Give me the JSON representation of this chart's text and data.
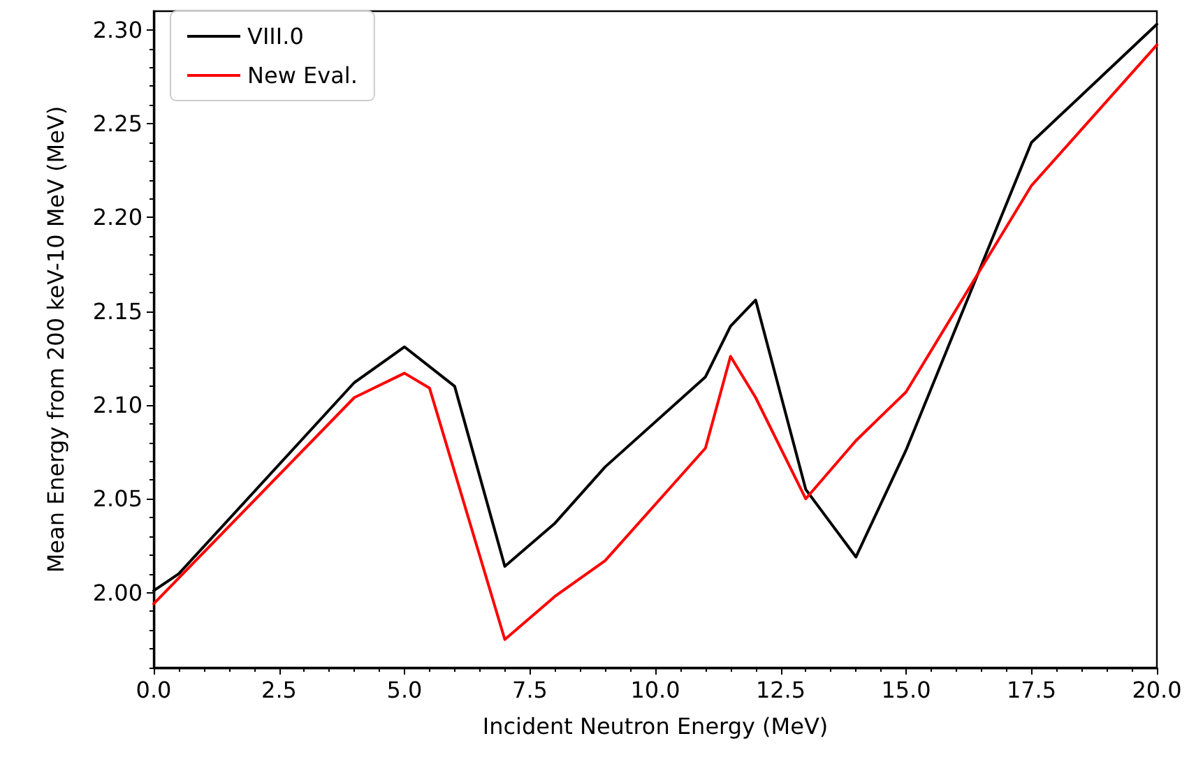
{
  "chart_data": {
    "type": "line",
    "xlabel": "Incident Neutron Energy (MeV)",
    "ylabel": "Mean Energy from 200 keV-10 MeV (MeV)",
    "xlim": [
      0,
      20
    ],
    "ylim": [
      1.96,
      2.31
    ],
    "xticks": [
      {
        "value": 0,
        "label": "0.0"
      },
      {
        "value": 0.5,
        "label": null
      },
      {
        "value": 1,
        "label": null
      },
      {
        "value": 1.5,
        "label": null
      },
      {
        "value": 2,
        "label": null
      },
      {
        "value": 2.5,
        "label": "2.5"
      },
      {
        "value": 3,
        "label": null
      },
      {
        "value": 3.5,
        "label": null
      },
      {
        "value": 4,
        "label": null
      },
      {
        "value": 4.5,
        "label": null
      },
      {
        "value": 5,
        "label": "5.0"
      },
      {
        "value": 5.5,
        "label": null
      },
      {
        "value": 6,
        "label": null
      },
      {
        "value": 6.5,
        "label": null
      },
      {
        "value": 7,
        "label": null
      },
      {
        "value": 7.5,
        "label": "7.5"
      },
      {
        "value": 8,
        "label": null
      },
      {
        "value": 8.5,
        "label": null
      },
      {
        "value": 9,
        "label": null
      },
      {
        "value": 9.5,
        "label": null
      },
      {
        "value": 10,
        "label": "10.0"
      },
      {
        "value": 10.5,
        "label": null
      },
      {
        "value": 11,
        "label": null
      },
      {
        "value": 11.5,
        "label": null
      },
      {
        "value": 12,
        "label": null
      },
      {
        "value": 12.5,
        "label": "12.5"
      },
      {
        "value": 13,
        "label": null
      },
      {
        "value": 13.5,
        "label": null
      },
      {
        "value": 14,
        "label": null
      },
      {
        "value": 14.5,
        "label": null
      },
      {
        "value": 15,
        "label": "15.0"
      },
      {
        "value": 15.5,
        "label": null
      },
      {
        "value": 16,
        "label": null
      },
      {
        "value": 16.5,
        "label": null
      },
      {
        "value": 17,
        "label": null
      },
      {
        "value": 17.5,
        "label": "17.5"
      },
      {
        "value": 18,
        "label": null
      },
      {
        "value": 18.5,
        "label": null
      },
      {
        "value": 19,
        "label": null
      },
      {
        "value": 19.5,
        "label": null
      },
      {
        "value": 20,
        "label": "20.0"
      }
    ],
    "yticks": [
      {
        "value": 1.96,
        "label": null
      },
      {
        "value": 1.97,
        "label": null
      },
      {
        "value": 1.98,
        "label": null
      },
      {
        "value": 1.99,
        "label": null
      },
      {
        "value": 2.0,
        "label": "2.00"
      },
      {
        "value": 2.01,
        "label": null
      },
      {
        "value": 2.02,
        "label": null
      },
      {
        "value": 2.03,
        "label": null
      },
      {
        "value": 2.04,
        "label": null
      },
      {
        "value": 2.05,
        "label": "2.05"
      },
      {
        "value": 2.06,
        "label": null
      },
      {
        "value": 2.07,
        "label": null
      },
      {
        "value": 2.08,
        "label": null
      },
      {
        "value": 2.09,
        "label": null
      },
      {
        "value": 2.1,
        "label": "2.10"
      },
      {
        "value": 2.11,
        "label": null
      },
      {
        "value": 2.12,
        "label": null
      },
      {
        "value": 2.13,
        "label": null
      },
      {
        "value": 2.14,
        "label": null
      },
      {
        "value": 2.15,
        "label": "2.15"
      },
      {
        "value": 2.16,
        "label": null
      },
      {
        "value": 2.17,
        "label": null
      },
      {
        "value": 2.18,
        "label": null
      },
      {
        "value": 2.19,
        "label": null
      },
      {
        "value": 2.2,
        "label": "2.20"
      },
      {
        "value": 2.21,
        "label": null
      },
      {
        "value": 2.22,
        "label": null
      },
      {
        "value": 2.23,
        "label": null
      },
      {
        "value": 2.24,
        "label": null
      },
      {
        "value": 2.25,
        "label": "2.25"
      },
      {
        "value": 2.26,
        "label": null
      },
      {
        "value": 2.27,
        "label": null
      },
      {
        "value": 2.28,
        "label": null
      },
      {
        "value": 2.29,
        "label": null
      },
      {
        "value": 2.3,
        "label": "2.30"
      }
    ],
    "series": [
      {
        "name": "VIII.0",
        "color": "#000000",
        "x": [
          0,
          0.5,
          4,
          5,
          6,
          7,
          8,
          9,
          11,
          11.5,
          12,
          13,
          14,
          15,
          17.5,
          20
        ],
        "values": [
          2.001,
          2.01,
          2.112,
          2.131,
          2.11,
          2.014,
          2.037,
          2.067,
          2.115,
          2.142,
          2.156,
          2.055,
          2.019,
          2.076,
          2.24,
          2.303
        ]
      },
      {
        "name": "New Eval.",
        "color": "#ff0000",
        "x": [
          0,
          4,
          5,
          5.5,
          7,
          8,
          9,
          11,
          11.5,
          12,
          13,
          14,
          15,
          17.5,
          20
        ],
        "values": [
          1.994,
          2.104,
          2.117,
          2.109,
          1.975,
          1.998,
          2.017,
          2.077,
          2.126,
          2.104,
          2.05,
          2.081,
          2.107,
          2.217,
          2.292
        ]
      }
    ],
    "legend": "top left",
    "grid": false,
    "marker": "none",
    "line_style": "solid"
  }
}
